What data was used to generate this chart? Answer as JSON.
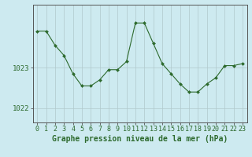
{
  "x": [
    0,
    1,
    2,
    3,
    4,
    5,
    6,
    7,
    8,
    9,
    10,
    11,
    12,
    13,
    14,
    15,
    16,
    17,
    18,
    19,
    20,
    21,
    22,
    23
  ],
  "y": [
    1023.9,
    1023.9,
    1023.55,
    1023.3,
    1022.85,
    1022.55,
    1022.55,
    1022.7,
    1022.95,
    1022.95,
    1023.15,
    1024.1,
    1024.1,
    1023.6,
    1023.1,
    1022.85,
    1022.6,
    1022.4,
    1022.4,
    1022.6,
    1022.75,
    1023.05,
    1023.05,
    1023.1
  ],
  "line_color": "#2d6a2d",
  "marker_color": "#2d6a2d",
  "bg_color": "#cdeaf0",
  "grid_color": "#b0c8cc",
  "yticks": [
    1022.0,
    1023.0
  ],
  "ylim": [
    1021.65,
    1024.55
  ],
  "xlim": [
    -0.5,
    23.5
  ],
  "xlabel": "Graphe pression niveau de la mer (hPa)",
  "xlabel_fontsize": 7.0,
  "tick_fontsize": 6.5
}
